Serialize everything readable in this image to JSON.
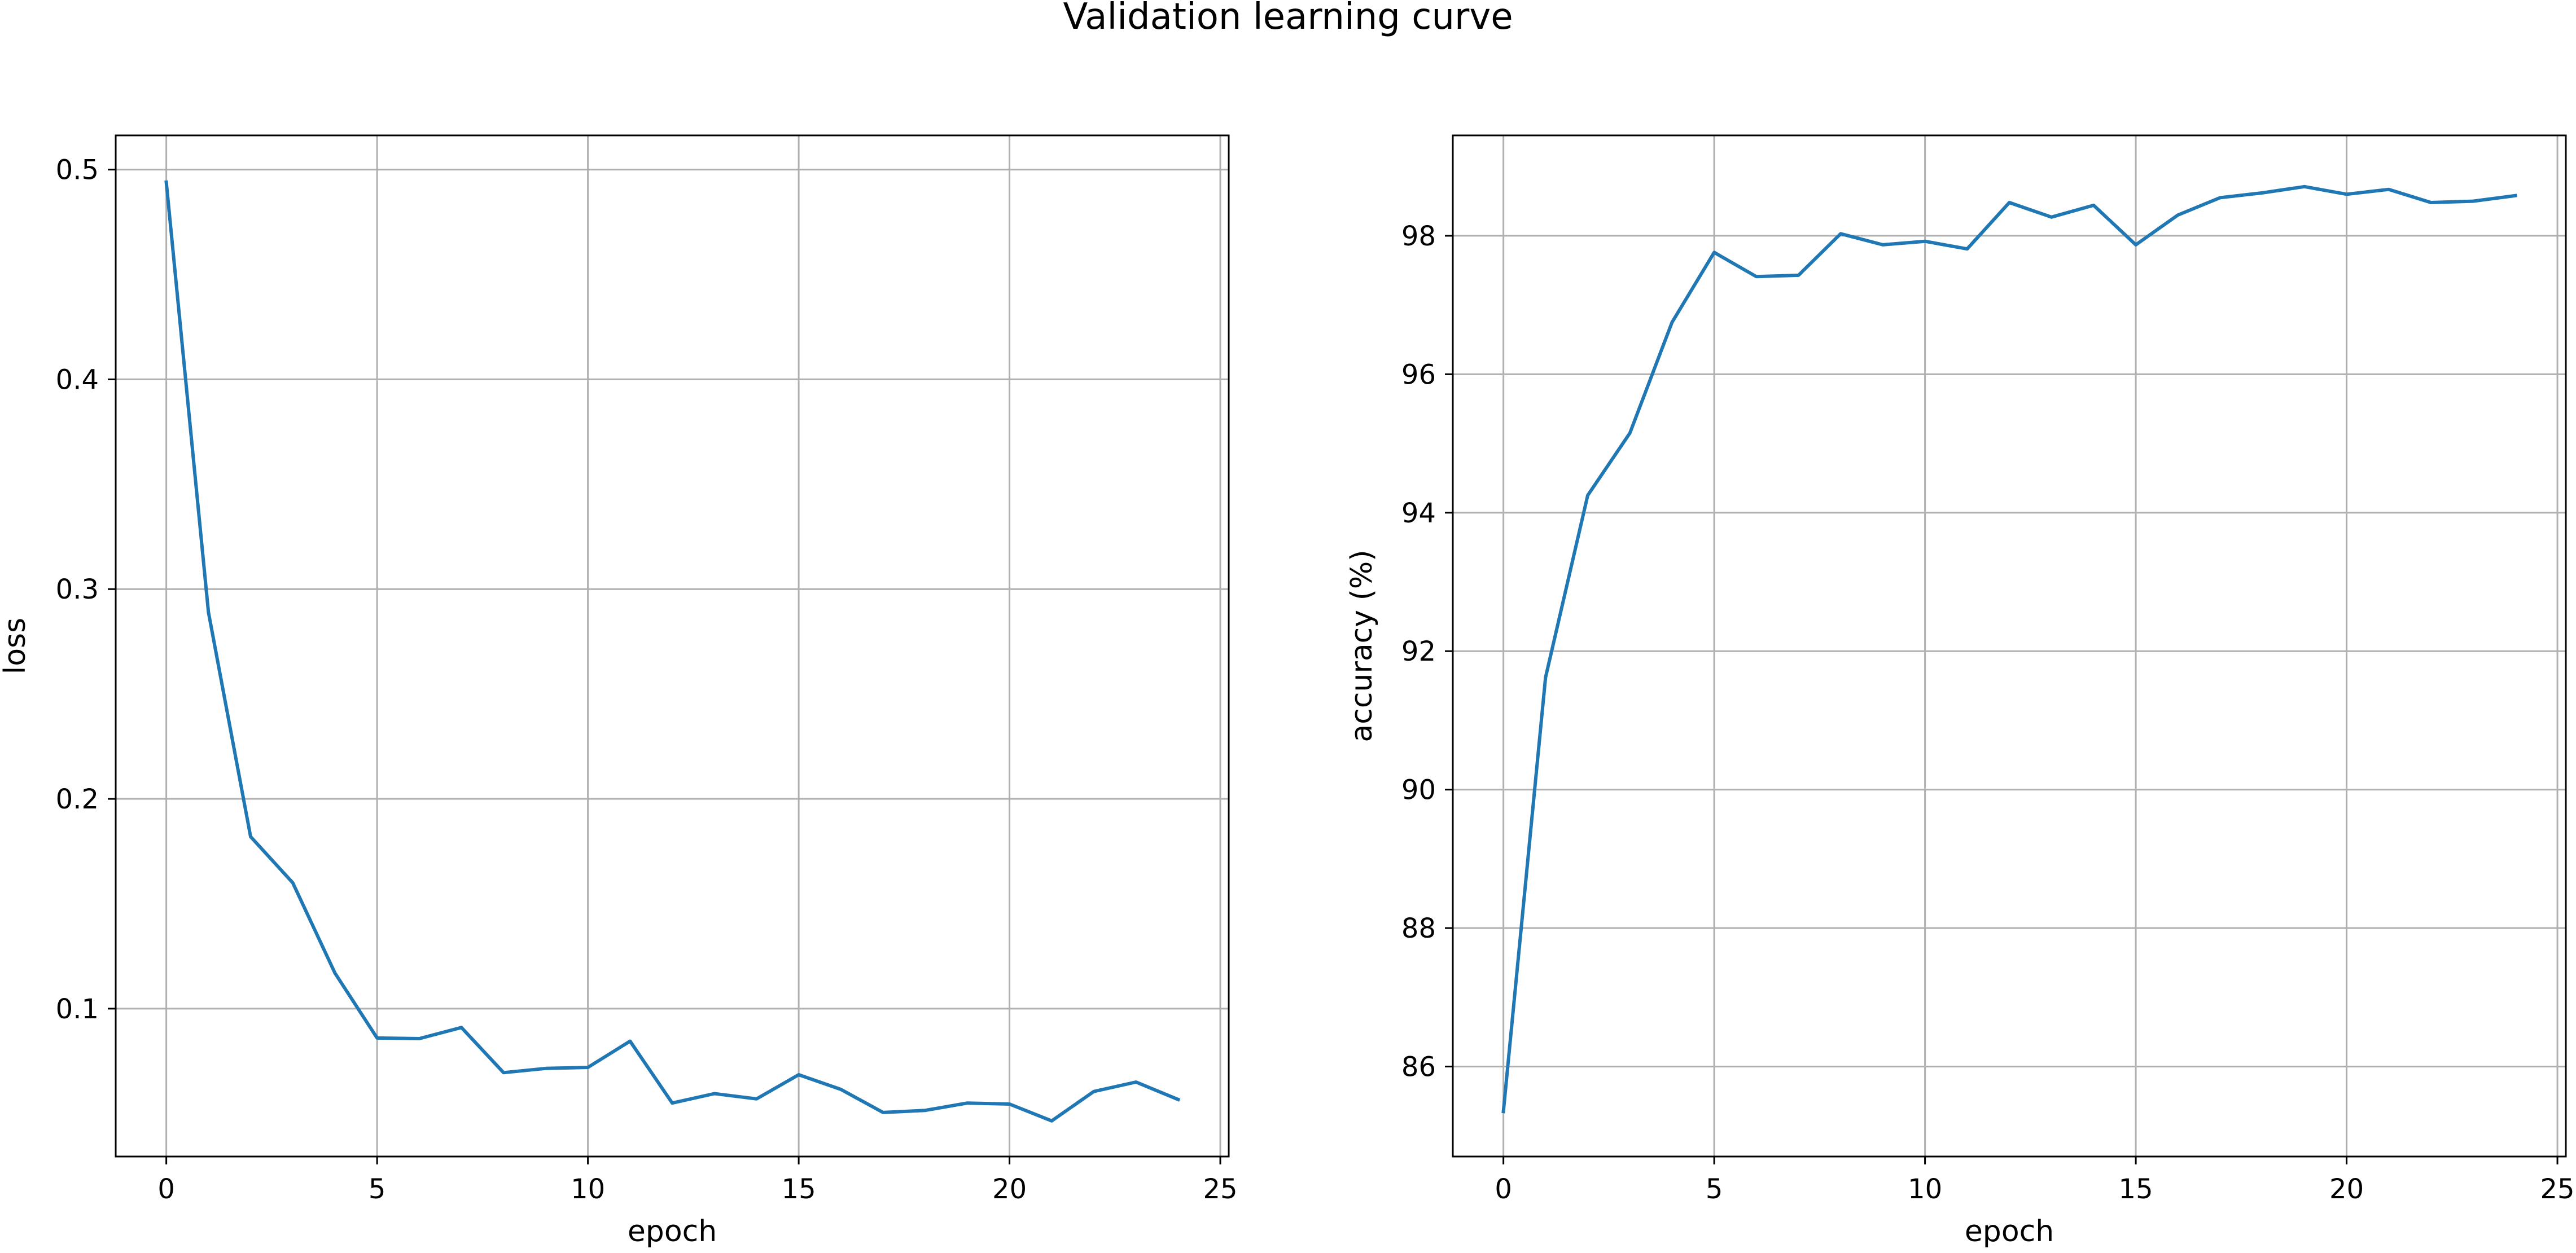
{
  "figure": {
    "title": "Validation learning curve"
  },
  "chart_data": [
    {
      "type": "line",
      "xlabel": "epoch",
      "ylabel": "loss",
      "xlim": [
        -1.2,
        25.2
      ],
      "ylim": [
        0.0295,
        0.5163
      ],
      "xticks": [
        0,
        5,
        10,
        15,
        20,
        25
      ],
      "yticks": [
        0.1,
        0.2,
        0.3,
        0.4,
        0.5
      ],
      "ytick_labels": [
        "0.1",
        "0.2",
        "0.3",
        "0.4",
        "0.5"
      ],
      "grid": true,
      "color": "#1f77b4",
      "series": [
        {
          "x": [
            0,
            1,
            2,
            3,
            4,
            5,
            6,
            7,
            8,
            9,
            10,
            11,
            12,
            13,
            14,
            15,
            16,
            17,
            18,
            19,
            20,
            21,
            22,
            23,
            24
          ],
          "values": [
            0.494,
            0.289,
            0.182,
            0.16,
            0.117,
            0.086,
            0.0857,
            0.091,
            0.0695,
            0.0715,
            0.072,
            0.0845,
            0.055,
            0.0595,
            0.057,
            0.0685,
            0.0615,
            0.0505,
            0.0515,
            0.055,
            0.0545,
            0.0465,
            0.0605,
            0.065,
            0.0567
          ]
        }
      ]
    },
    {
      "type": "line",
      "xlabel": "epoch",
      "ylabel": "accuracy (%)",
      "xlim": [
        -1.2,
        25.2
      ],
      "ylim": [
        84.7,
        99.45
      ],
      "xticks": [
        0,
        5,
        10,
        15,
        20,
        25
      ],
      "yticks": [
        86,
        88,
        90,
        92,
        94,
        96,
        98
      ],
      "ytick_labels": [
        "86",
        "88",
        "90",
        "92",
        "94",
        "96",
        "98"
      ],
      "grid": true,
      "color": "#1f77b4",
      "series": [
        {
          "x": [
            0,
            1,
            2,
            3,
            4,
            5,
            6,
            7,
            8,
            9,
            10,
            11,
            12,
            13,
            14,
            15,
            16,
            17,
            18,
            19,
            20,
            21,
            22,
            23,
            24
          ],
          "values": [
            85.35,
            91.62,
            94.25,
            95.15,
            96.75,
            97.76,
            97.41,
            97.43,
            98.03,
            97.87,
            97.92,
            97.81,
            98.48,
            98.27,
            98.44,
            97.87,
            98.3,
            98.55,
            98.62,
            98.71,
            98.6,
            98.67,
            98.48,
            98.5,
            98.58
          ]
        }
      ]
    }
  ]
}
